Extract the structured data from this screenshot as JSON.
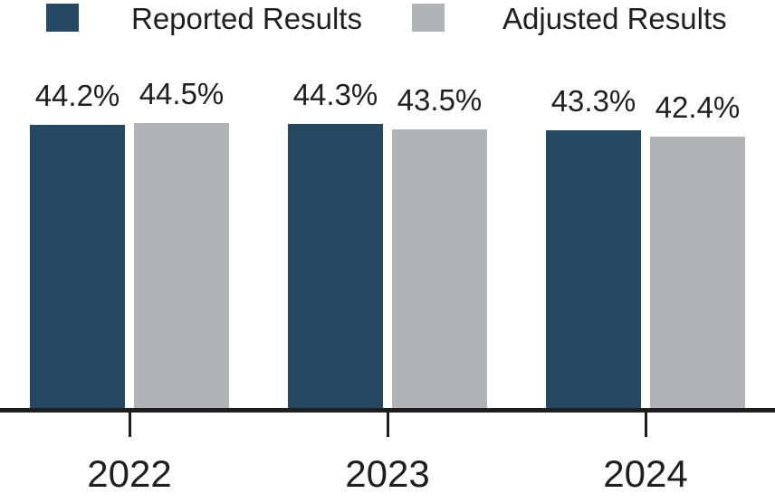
{
  "chart_data": {
    "type": "bar",
    "title": "",
    "xlabel": "",
    "ylabel": "",
    "categories": [
      "2022",
      "2023",
      "2024"
    ],
    "series": [
      {
        "name": "Reported Results",
        "color": "#254962",
        "values": [
          44.2,
          44.3,
          43.3
        ],
        "value_labels": [
          "44.2%",
          "44.3%",
          "43.3%"
        ]
      },
      {
        "name": "Adjusted Results",
        "color": "#b1b3b6",
        "values": [
          44.5,
          43.5,
          42.4
        ],
        "value_labels": [
          "44.5%",
          "43.5%",
          "42.4%"
        ]
      }
    ],
    "ylim": [
      0,
      45
    ],
    "y_axis_shown": false,
    "grid": false,
    "legend_position": "top",
    "bar_value_labels_shown": true
  },
  "colors": {
    "axis_line": "#1e1e1e",
    "label_text": "#1f1f1f",
    "background": "#ffffff"
  }
}
